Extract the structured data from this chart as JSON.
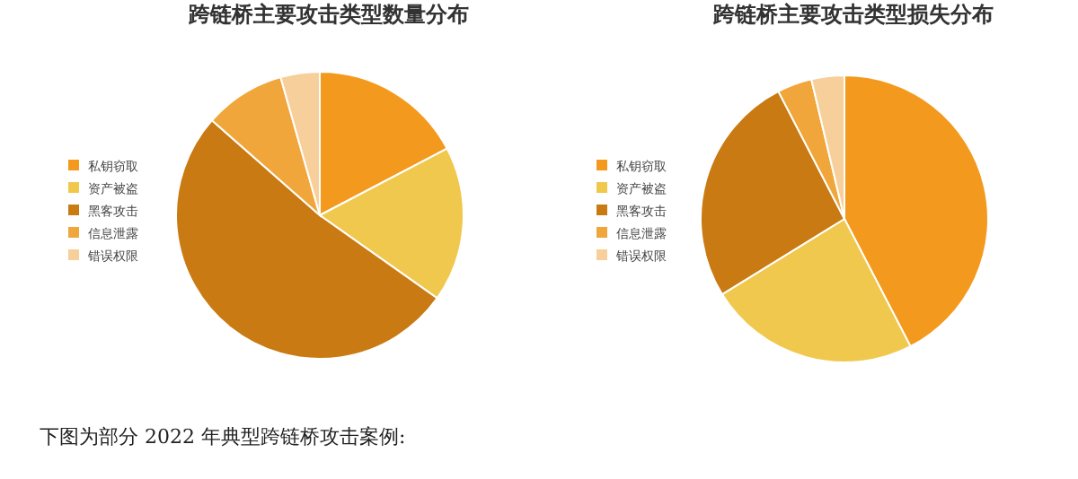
{
  "chart_data": [
    {
      "type": "pie",
      "title": "跨链桥主要攻击类型数量分布",
      "categories": [
        "私钥窃取",
        "资产被盗",
        "黑客攻击",
        "信息泄露",
        "错误权限"
      ],
      "values": [
        17.3,
        17.5,
        51.7,
        9.1,
        4.4
      ],
      "colors": [
        "#f39a1e",
        "#f1c84e",
        "#c97a12",
        "#f0a63a",
        "#f7cf9a"
      ],
      "legend": "left",
      "annotations": [
        "下图为部分 2022 年典型跨链桥攻击案例:"
      ]
    },
    {
      "type": "pie",
      "title": "跨链桥主要攻击类型损失分布",
      "categories": [
        "私钥窃取",
        "资产被盗",
        "黑客攻击",
        "信息泄露",
        "错误权限"
      ],
      "values": [
        42.4,
        23.8,
        26.2,
        3.9,
        3.7
      ],
      "colors": [
        "#f39a1e",
        "#f1c84e",
        "#c97a12",
        "#f0a63a",
        "#f7cf9a"
      ],
      "legend": "left"
    }
  ]
}
